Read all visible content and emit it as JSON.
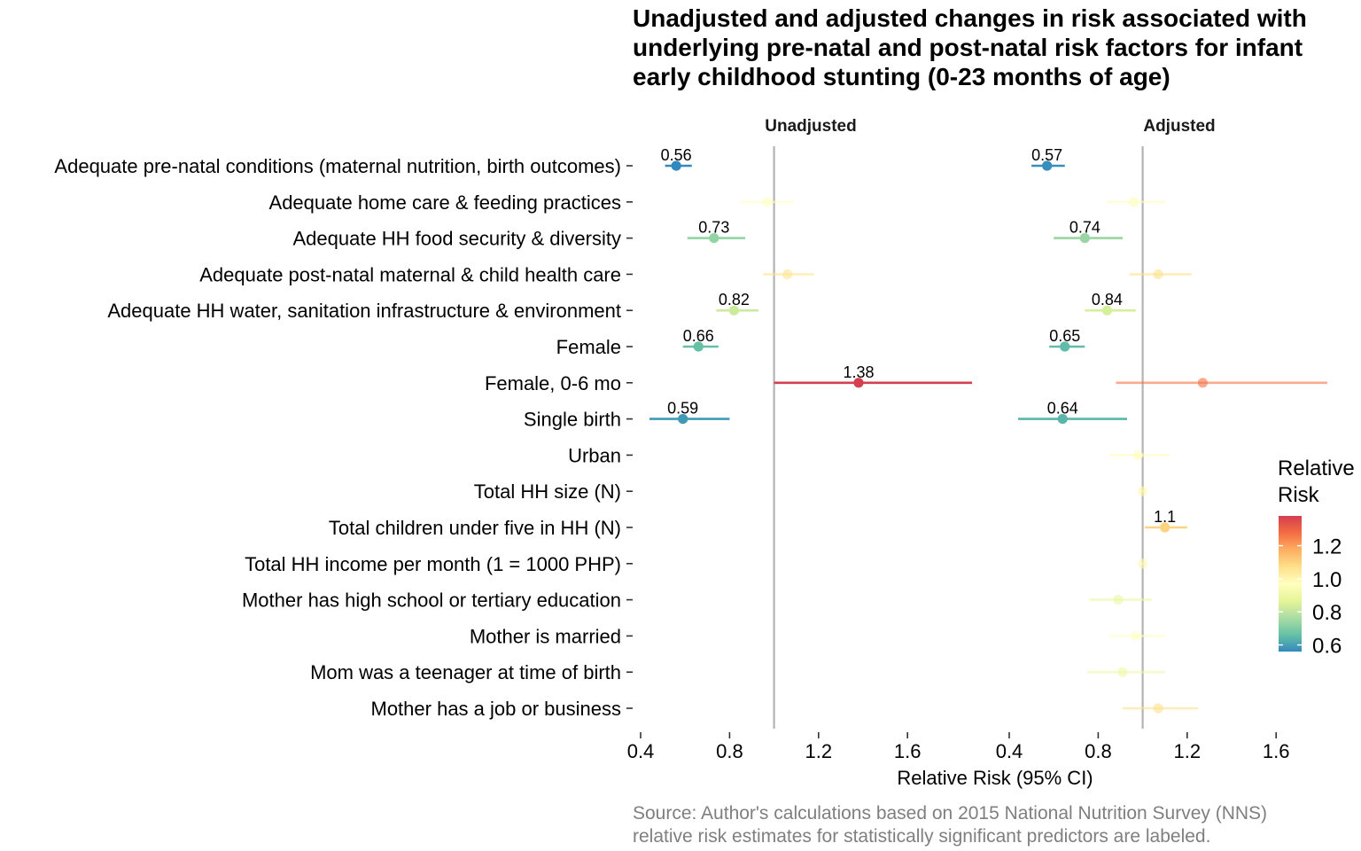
{
  "chart_data": {
    "type": "forest",
    "title": [
      "Unadjusted and adjusted changes in risk associated with",
      "underlying pre-natal and post-natal risk factors for infant",
      "early childhood stunting (0-23 months of age)"
    ],
    "xlabel": "Relative Risk (95% CI)",
    "reference_line": 1.0,
    "xlim": [
      0.4,
      1.8
    ],
    "xticks": [
      "0.4",
      "0.8",
      "1.2",
      "1.6"
    ],
    "xtick_values": [
      0.4,
      0.8,
      1.2,
      1.6
    ],
    "categories": [
      "Adequate pre-natal conditions (maternal nutrition, birth outcomes)",
      "Adequate home care & feeding practices",
      "Adequate HH food security & diversity",
      "Adequate post-natal maternal & child health care",
      "Adequate HH water, sanitation infrastructure & environment",
      "Female",
      "Female, 0-6 mo",
      "Single birth",
      "Urban",
      "Total HH size (N)",
      "Total children under five in HH (N)",
      "Total HH income per month (1 = 1000 PHP)",
      "Mother has high school or tertiary education",
      "Mother is married",
      "Mom was a teenager at time of birth",
      "Mother has a job or business"
    ],
    "panels": [
      {
        "name": "Unadjusted",
        "points": [
          {
            "row": 0,
            "rr": 0.56,
            "lo": 0.51,
            "hi": 0.63,
            "label": "0.56",
            "alpha": 1
          },
          {
            "row": 1,
            "rr": 0.97,
            "lo": 0.85,
            "hi": 1.09,
            "label": null,
            "alpha": 0.6
          },
          {
            "row": 2,
            "rr": 0.73,
            "lo": 0.61,
            "hi": 0.87,
            "label": "0.73",
            "alpha": 1
          },
          {
            "row": 3,
            "rr": 1.06,
            "lo": 0.95,
            "hi": 1.18,
            "label": null,
            "alpha": 0.6
          },
          {
            "row": 4,
            "rr": 0.82,
            "lo": 0.74,
            "hi": 0.93,
            "label": "0.82",
            "alpha": 1
          },
          {
            "row": 5,
            "rr": 0.66,
            "lo": 0.59,
            "hi": 0.75,
            "label": "0.66",
            "alpha": 1
          },
          {
            "row": 6,
            "rr": 1.38,
            "lo": 1.0,
            "hi": 1.89,
            "label": "1.38",
            "alpha": 1
          },
          {
            "row": 7,
            "rr": 0.59,
            "lo": 0.44,
            "hi": 0.8,
            "label": "0.59",
            "alpha": 1
          }
        ]
      },
      {
        "name": "Adjusted",
        "points": [
          {
            "row": 0,
            "rr": 0.57,
            "lo": 0.5,
            "hi": 0.65,
            "label": "0.57",
            "alpha": 1
          },
          {
            "row": 1,
            "rr": 0.96,
            "lo": 0.84,
            "hi": 1.1,
            "label": null,
            "alpha": 0.6
          },
          {
            "row": 2,
            "rr": 0.74,
            "lo": 0.6,
            "hi": 0.91,
            "label": "0.74",
            "alpha": 1
          },
          {
            "row": 3,
            "rr": 1.07,
            "lo": 0.94,
            "hi": 1.22,
            "label": null,
            "alpha": 0.6
          },
          {
            "row": 4,
            "rr": 0.84,
            "lo": 0.74,
            "hi": 0.97,
            "label": "0.84",
            "alpha": 1
          },
          {
            "row": 5,
            "rr": 0.65,
            "lo": 0.58,
            "hi": 0.74,
            "label": "0.65",
            "alpha": 1
          },
          {
            "row": 6,
            "rr": 1.27,
            "lo": 0.88,
            "hi": 1.83,
            "label": null,
            "alpha": 0.6
          },
          {
            "row": 7,
            "rr": 0.64,
            "lo": 0.44,
            "hi": 0.93,
            "label": "0.64",
            "alpha": 1
          },
          {
            "row": 8,
            "rr": 0.98,
            "lo": 0.85,
            "hi": 1.12,
            "label": null,
            "alpha": 0.6
          },
          {
            "row": 9,
            "rr": 1.0,
            "lo": 0.99,
            "hi": 1.01,
            "label": null,
            "alpha": 0.6
          },
          {
            "row": 10,
            "rr": 1.1,
            "lo": 1.01,
            "hi": 1.2,
            "label": "1.1",
            "alpha": 1
          },
          {
            "row": 11,
            "rr": 1.0,
            "lo": 0.995,
            "hi": 1.005,
            "label": null,
            "alpha": 0.6
          },
          {
            "row": 12,
            "rr": 0.89,
            "lo": 0.76,
            "hi": 1.04,
            "label": null,
            "alpha": 0.6
          },
          {
            "row": 13,
            "rr": 0.97,
            "lo": 0.85,
            "hi": 1.1,
            "label": null,
            "alpha": 0.6
          },
          {
            "row": 14,
            "rr": 0.91,
            "lo": 0.75,
            "hi": 1.1,
            "label": null,
            "alpha": 0.6
          },
          {
            "row": 15,
            "rr": 1.07,
            "lo": 0.91,
            "hi": 1.25,
            "label": null,
            "alpha": 0.6
          }
        ]
      }
    ],
    "legend": {
      "title": [
        "Relative",
        "Risk"
      ],
      "ticks": [
        "0.6",
        "0.8",
        "1.0",
        "1.2"
      ],
      "tick_values": [
        0.6,
        0.8,
        1.0,
        1.2
      ],
      "range": [
        0.56,
        1.38
      ],
      "palette": [
        "#3288bd",
        "#66c2a5",
        "#abdda4",
        "#e6f598",
        "#ffffbf",
        "#fee08b",
        "#fdae61",
        "#f46d43",
        "#d53e4f"
      ]
    },
    "caption": [
      "Source: Author's calculations based on 2015 National Nutrition Survey (NNS)",
      "relative risk estimates for statistically significant predictors are labeled."
    ]
  },
  "colors": {
    "reference_line": "#b3b3b3",
    "caption": "#7f7f7f"
  }
}
